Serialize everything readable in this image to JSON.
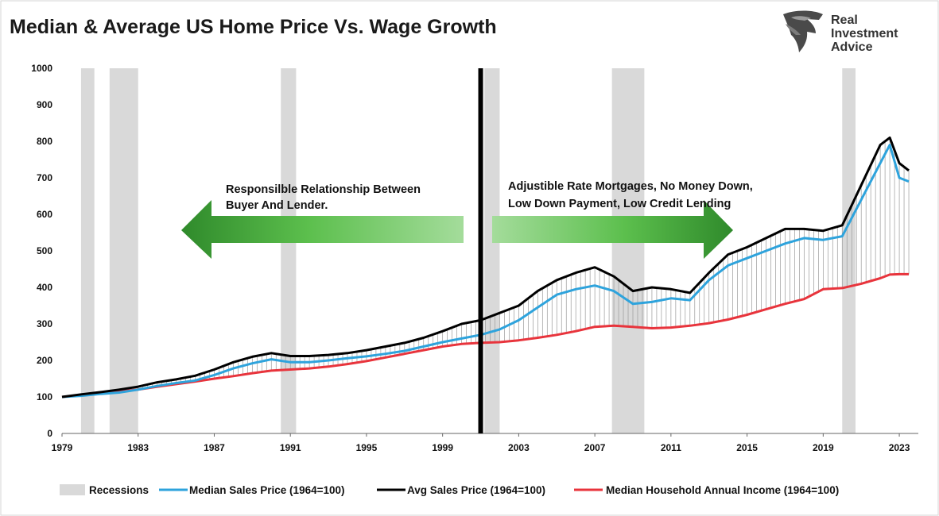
{
  "chart_data": {
    "type": "line",
    "title": "Median & Average US Home Price Vs. Wage Growth",
    "ylim": [
      0,
      1000
    ],
    "xlim": [
      1979,
      2024
    ],
    "yticks": [
      "0",
      "100",
      "200",
      "300",
      "400",
      "500",
      "600",
      "700",
      "800",
      "900",
      "1000"
    ],
    "xticks": [
      "1979",
      "1983",
      "1987",
      "1991",
      "1995",
      "1999",
      "2003",
      "2007",
      "2011",
      "2015",
      "2019",
      "2023"
    ],
    "grid": false,
    "legend_position": "bottom",
    "recessions": [
      [
        1980.0,
        1980.7
      ],
      [
        1981.5,
        1983.0
      ],
      [
        1990.5,
        1991.3
      ],
      [
        2001.2,
        2002.0
      ],
      [
        2007.9,
        2009.6
      ],
      [
        2020.0,
        2020.7
      ]
    ],
    "divider_x": 2001.0,
    "series": [
      {
        "name": "Median Sales Price (1964=100)",
        "color": "#2ea3dc",
        "x": [
          1979,
          1980,
          1981,
          1982,
          1983,
          1984,
          1985,
          1986,
          1987,
          1988,
          1989,
          1990,
          1991,
          1992,
          1993,
          1994,
          1995,
          1996,
          1997,
          1998,
          1999,
          2000,
          2001,
          2002,
          2003,
          2004,
          2005,
          2006,
          2007,
          2008,
          2009,
          2010,
          2011,
          2012,
          2013,
          2014,
          2015,
          2016,
          2017,
          2018,
          2019,
          2020,
          2021,
          2022,
          2022.5,
          2023,
          2023.5
        ],
        "values": [
          100,
          103,
          108,
          112,
          120,
          130,
          138,
          145,
          160,
          178,
          192,
          203,
          195,
          195,
          200,
          206,
          211,
          218,
          226,
          238,
          250,
          260,
          270,
          285,
          310,
          345,
          380,
          395,
          405,
          390,
          355,
          360,
          370,
          365,
          420,
          460,
          480,
          500,
          520,
          535,
          530,
          540,
          640,
          740,
          790,
          700,
          690
        ]
      },
      {
        "name": "Avg Sales Price (1964=100)",
        "color": "#000000",
        "x": [
          1979,
          1980,
          1981,
          1982,
          1983,
          1984,
          1985,
          1986,
          1987,
          1988,
          1989,
          1990,
          1991,
          1992,
          1993,
          1994,
          1995,
          1996,
          1997,
          1998,
          1999,
          2000,
          2001,
          2002,
          2003,
          2004,
          2005,
          2006,
          2007,
          2008,
          2009,
          2010,
          2011,
          2012,
          2013,
          2014,
          2015,
          2016,
          2017,
          2018,
          2019,
          2020,
          2021,
          2022,
          2022.5,
          2023,
          2023.5
        ],
        "values": [
          100,
          107,
          113,
          120,
          128,
          140,
          148,
          158,
          175,
          195,
          210,
          220,
          212,
          212,
          215,
          220,
          228,
          238,
          248,
          262,
          280,
          300,
          310,
          330,
          350,
          390,
          420,
          440,
          455,
          430,
          390,
          400,
          395,
          385,
          440,
          490,
          510,
          535,
          560,
          560,
          555,
          570,
          680,
          790,
          810,
          740,
          720
        ]
      },
      {
        "name": "Median Household Annual Income (1964=100)",
        "color": "#e8343c",
        "x": [
          1979,
          1980,
          1981,
          1982,
          1983,
          1984,
          1985,
          1986,
          1987,
          1988,
          1989,
          1990,
          1991,
          1992,
          1993,
          1994,
          1995,
          1996,
          1997,
          1998,
          1999,
          2000,
          2001,
          2002,
          2003,
          2004,
          2005,
          2006,
          2007,
          2008,
          2009,
          2010,
          2011,
          2012,
          2013,
          2014,
          2015,
          2016,
          2017,
          2018,
          2019,
          2020,
          2021,
          2022,
          2022.5,
          2023,
          2023.5
        ],
        "values": [
          100,
          105,
          110,
          115,
          120,
          128,
          135,
          142,
          150,
          157,
          165,
          172,
          175,
          178,
          183,
          190,
          198,
          208,
          218,
          228,
          238,
          245,
          248,
          250,
          255,
          262,
          270,
          280,
          292,
          295,
          292,
          288,
          290,
          295,
          302,
          312,
          325,
          340,
          355,
          368,
          395,
          398,
          410,
          425,
          435,
          436,
          436
        ]
      }
    ],
    "legend": [
      {
        "label": "Recessions",
        "color": "#d9d9d9",
        "kind": "box"
      },
      {
        "label": "Median Sales Price (1964=100)",
        "color": "#2ea3dc",
        "kind": "line"
      },
      {
        "label": "Avg Sales Price (1964=100)",
        "color": "#000000",
        "kind": "line"
      },
      {
        "label": "Median Household Annual Income (1964=100)",
        "color": "#e8343c",
        "kind": "line"
      }
    ],
    "annotations": {
      "left_lines": [
        "Responsilble Relationship Between",
        "Buyer And Lender."
      ],
      "right_lines": [
        "Adjustible Rate Mortgages, No Money Down,",
        "Low Down Payment, Low Credit Lending"
      ]
    }
  },
  "logo": {
    "lines": [
      "Real",
      "Investment",
      "Advice"
    ]
  }
}
